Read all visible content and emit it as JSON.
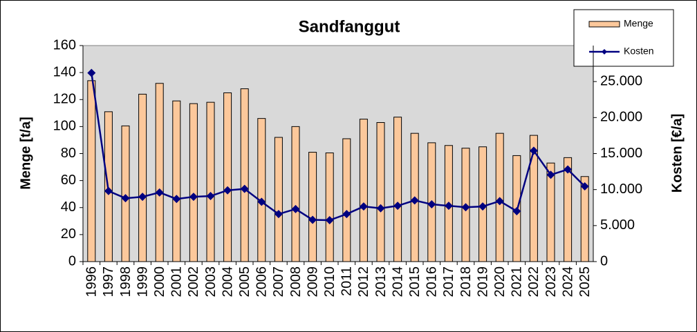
{
  "chart_data": {
    "type": "bar_line",
    "title": "Sandfanggut",
    "y_label": "Menge [t/a]",
    "y2_label": "Kosten [€/a]",
    "categories": [
      "1996",
      "1997",
      "1998",
      "1999",
      "2000",
      "2001",
      "2002",
      "2003",
      "2004",
      "2005",
      "2006",
      "2007",
      "2008",
      "2009",
      "2010",
      "2011",
      "2012",
      "2013",
      "2014",
      "2015",
      "2016",
      "2017",
      "2018",
      "2019",
      "2020",
      "2021",
      "2022",
      "2023",
      "2024",
      "2025"
    ],
    "series": [
      {
        "name": "Menge",
        "type": "bar",
        "color": "#fcc89b",
        "values": [
          134,
          111,
          100.5,
          124,
          132,
          119,
          117,
          118,
          125,
          128,
          106,
          92,
          100,
          81,
          80.5,
          91,
          105.5,
          103,
          107,
          95,
          88,
          86,
          84,
          85,
          95,
          78.5,
          93.5,
          73,
          77,
          63
        ]
      },
      {
        "name": "Kosten",
        "type": "line",
        "axis": "y2",
        "color": "#000080",
        "values": [
          26200,
          9800,
          8800,
          9000,
          9600,
          8700,
          9000,
          9100,
          9900,
          10100,
          8300,
          6600,
          7300,
          5800,
          5750,
          6600,
          7650,
          7400,
          7750,
          8500,
          7950,
          7750,
          7550,
          7650,
          8400,
          7000,
          15400,
          12050,
          12800,
          10450
        ]
      }
    ],
    "ylim": [
      0,
      160
    ],
    "yticks": [
      0,
      20,
      40,
      60,
      80,
      100,
      120,
      140,
      160
    ],
    "y2lim": [
      0,
      30000
    ],
    "y2ticks": [
      0,
      {
        "value": 5000,
        "label": "5.000"
      },
      {
        "value": 10000,
        "label": "10.000"
      },
      {
        "value": 15000,
        "label": "15.000"
      },
      {
        "value": 20000,
        "label": "20.000"
      },
      {
        "value": 25000,
        "label": "25.000"
      }
    ]
  }
}
